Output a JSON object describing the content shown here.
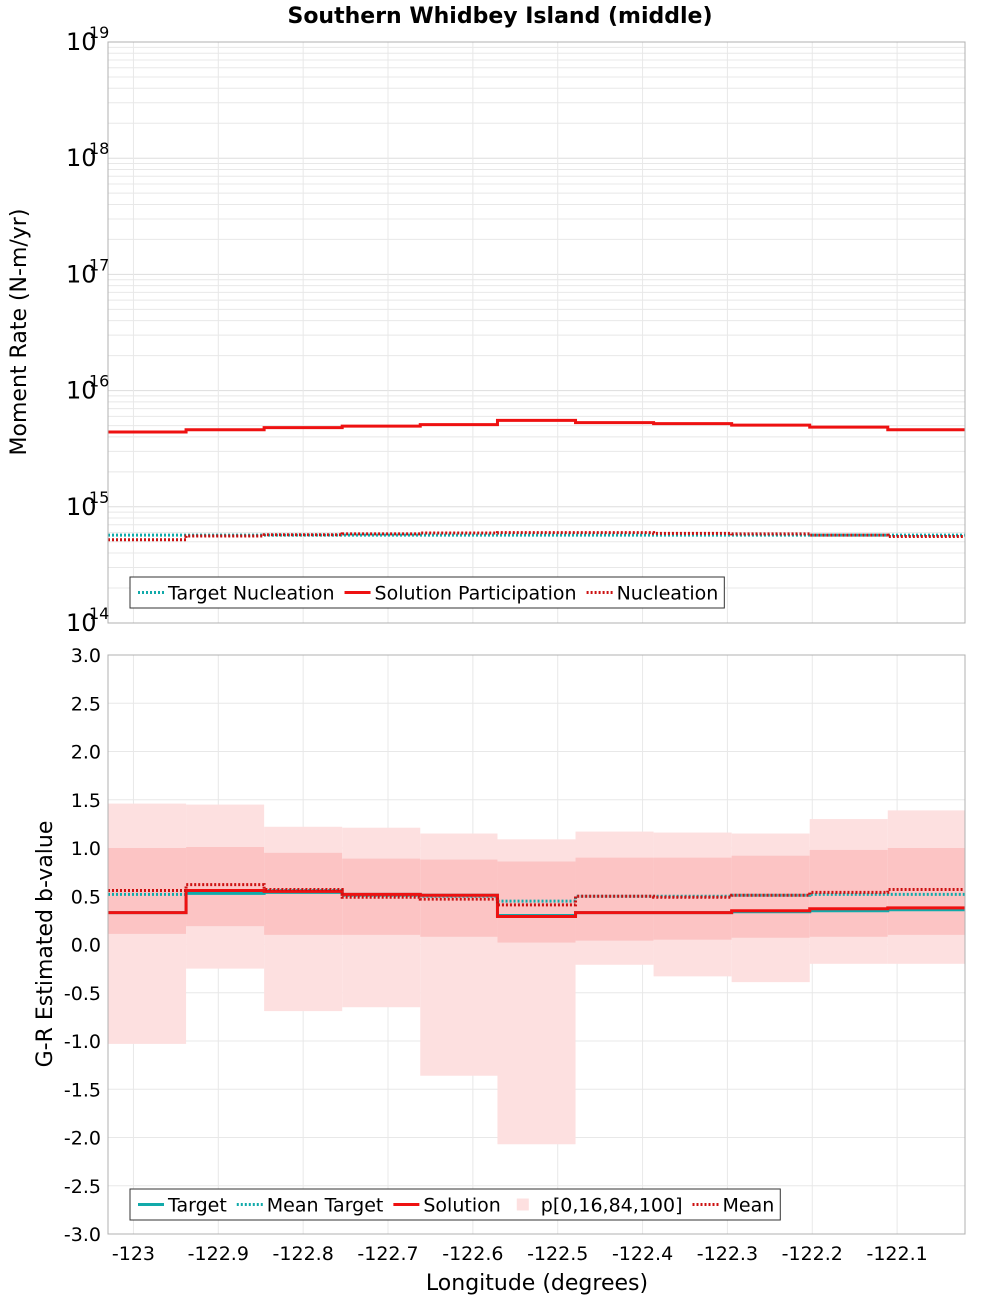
{
  "chart_data": [
    {
      "type": "line",
      "title": "Southern Whidbey Island (middle)",
      "ylabel": "Moment Rate (N-m/yr)",
      "yscale": "log",
      "ylim": [
        100000000000000.0,
        1e+19
      ],
      "ytick_base": "10",
      "yticks": [
        {
          "value": 1e+19,
          "exp": "19"
        },
        {
          "value": 1e+18,
          "exp": "18"
        },
        {
          "value": 1e+17,
          "exp": "17"
        },
        {
          "value": 1e+16,
          "exp": "16"
        },
        {
          "value": 1000000000000000.0,
          "exp": "15"
        },
        {
          "value": 100000000000000.0,
          "exp": "14"
        }
      ],
      "xlim": [
        -123.03,
        -122.02
      ],
      "x_edges": [
        -123.03,
        -122.938,
        -122.846,
        -122.754,
        -122.662,
        -122.571,
        -122.479,
        -122.387,
        -122.295,
        -122.203,
        -122.111,
        -122.02
      ],
      "series": [
        {
          "name": "Target Nucleation",
          "style": "dotted",
          "color": "#11aaaa",
          "values": [
            570000000000000.0,
            570000000000000.0,
            570000000000000.0,
            570000000000000.0,
            570000000000000.0,
            570000000000000.0,
            570000000000000.0,
            570000000000000.0,
            570000000000000.0,
            570000000000000.0,
            570000000000000.0
          ]
        },
        {
          "name": "Solution Participation",
          "style": "solid",
          "color": "#ee1111",
          "values": [
            4400000000000000.0,
            4600000000000000.0,
            4800000000000000.0,
            4950000000000000.0,
            5100000000000000.0,
            5550000000000000.0,
            5300000000000000.0,
            5200000000000000.0,
            5050000000000000.0,
            4850000000000000.0,
            4600000000000000.0,
            4450000000000000.0
          ]
        },
        {
          "name": "Nucleation",
          "style": "dotted",
          "color": "#cc1111",
          "values": [
            520000000000000.0,
            560000000000000.0,
            575000000000000.0,
            585000000000000.0,
            595000000000000.0,
            600000000000000.0,
            600000000000000.0,
            590000000000000.0,
            585000000000000.0,
            570000000000000.0,
            555000000000000.0,
            520000000000000.0
          ]
        }
      ],
      "legend": {
        "position": "bottom-left",
        "entries": [
          "Target Nucleation",
          "Solution Participation",
          "Nucleation"
        ]
      },
      "grid": true
    },
    {
      "type": "line",
      "xlabel": "Longitude (degrees)",
      "ylabel": "G-R Estimated b-value",
      "ylim": [
        -3.0,
        3.0
      ],
      "yticks": [
        "3.0",
        "2.5",
        "2.0",
        "1.5",
        "1.0",
        "0.5",
        "0.0",
        "-0.5",
        "-1.0",
        "-1.5",
        "-2.0",
        "-2.5",
        "-3.0"
      ],
      "xlim": [
        -123.03,
        -122.02
      ],
      "xticks": [
        "-123",
        "-122.9",
        "-122.8",
        "-122.7",
        "-122.6",
        "-122.5",
        "-122.4",
        "-122.3",
        "-122.2",
        "-122.1"
      ],
      "x_edges": [
        -123.03,
        -122.938,
        -122.846,
        -122.754,
        -122.662,
        -122.571,
        -122.479,
        -122.387,
        -122.295,
        -122.203,
        -122.111,
        -122.02
      ],
      "bands": {
        "p0": [
          -1.03,
          -0.25,
          -0.69,
          -0.65,
          -1.36,
          -2.07,
          -0.21,
          -0.33,
          -0.39,
          -0.2,
          -0.2,
          -0.26
        ],
        "p16": [
          0.11,
          0.19,
          0.1,
          0.1,
          0.08,
          0.02,
          0.04,
          0.05,
          0.07,
          0.08,
          0.1,
          0.1
        ],
        "p84": [
          1.0,
          1.01,
          0.95,
          0.89,
          0.88,
          0.86,
          0.9,
          0.9,
          0.92,
          0.98,
          1.0,
          1.0
        ],
        "p100": [
          1.46,
          1.45,
          1.22,
          1.21,
          1.15,
          1.09,
          1.17,
          1.16,
          1.15,
          1.3,
          1.39,
          1.41
        ]
      },
      "series": [
        {
          "name": "Target",
          "style": "solid",
          "color": "#11aaaa",
          "values": [
            0.33,
            0.53,
            0.54,
            0.52,
            0.51,
            0.3,
            0.33,
            0.33,
            0.34,
            0.35,
            0.36,
            0.36
          ]
        },
        {
          "name": "Mean Target",
          "style": "dotted",
          "color": "#11aaaa",
          "values": [
            0.52,
            0.55,
            0.56,
            0.51,
            0.5,
            0.45,
            0.5,
            0.5,
            0.51,
            0.52,
            0.52,
            0.52
          ]
        },
        {
          "name": "Solution",
          "style": "solid",
          "color": "#ee1111",
          "values": [
            0.33,
            0.56,
            0.55,
            0.52,
            0.51,
            0.29,
            0.33,
            0.33,
            0.35,
            0.37,
            0.38,
            0.36
          ]
        },
        {
          "name": "Mean",
          "style": "dotted",
          "color": "#cc1111",
          "values": [
            0.56,
            0.62,
            0.57,
            0.49,
            0.47,
            0.41,
            0.5,
            0.49,
            0.51,
            0.54,
            0.57,
            0.56
          ]
        }
      ],
      "band_label": "p[0,16,84,100]",
      "legend": {
        "position": "bottom-left",
        "entries": [
          "Target",
          "Mean Target",
          "Solution",
          "p[0,16,84,100]",
          "Mean"
        ]
      },
      "grid": true
    }
  ],
  "colors": {
    "band_outer": "#fde0e0",
    "band_inner": "#fcc4c4",
    "grid": "#e8e8e8"
  }
}
